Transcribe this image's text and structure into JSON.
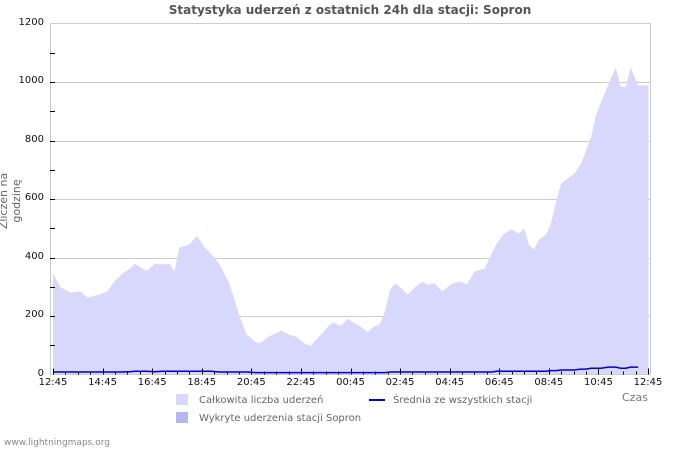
{
  "title": "Statystyka uderzeń z ostatnich 24h dla stacji: Sopron",
  "footer": "www.lightningmaps.org",
  "chart_data": {
    "type": "area",
    "title": "Statystyka uderzeń z ostatnich 24h dla stacji: Sopron",
    "xlabel": "Czas",
    "ylabel": "Zliczeń na godzinę",
    "ylim": [
      0,
      1200
    ],
    "yticks": [
      0,
      200,
      400,
      600,
      800,
      1000,
      1200
    ],
    "xticks": [
      "12:45",
      "14:45",
      "16:45",
      "18:45",
      "20:45",
      "22:45",
      "00:45",
      "02:45",
      "04:45",
      "06:45",
      "08:45",
      "10:45",
      "12:45"
    ],
    "grid": true,
    "legend_position": "bottom",
    "x_hours": [
      0,
      0.3,
      0.7,
      1.1,
      1.4,
      1.9,
      2.2,
      2.5,
      2.8,
      3.1,
      3.3,
      3.6,
      3.8,
      4.1,
      4.4,
      4.7,
      4.9,
      5.1,
      5.5,
      5.8,
      6.1,
      6.4,
      6.7,
      7.1,
      7.5,
      7.8,
      8.2,
      8.4,
      8.7,
      8.9,
      9.2,
      9.5,
      9.8,
      10.2,
      10.4,
      10.7,
      11.1,
      11.3,
      11.6,
      11.9,
      12.1,
      12.4,
      12.7,
      12.9,
      13.2,
      13.4,
      13.6,
      13.8,
      14.0,
      14.3,
      14.6,
      14.9,
      15.1,
      15.4,
      15.7,
      16.1,
      16.4,
      16.7,
      17.0,
      17.4,
      17.7,
      17.9,
      18.2,
      18.5,
      18.8,
      19.0,
      19.2,
      19.4,
      19.6,
      19.9,
      20.1,
      20.3,
      20.5,
      20.8,
      21.0,
      21.3,
      21.5,
      21.7,
      21.9,
      22.1,
      22.4,
      22.7,
      22.9,
      23.1,
      23.3,
      23.6
    ],
    "series": [
      {
        "name": "Całkowita liczba uderzeń",
        "color": "#d8d8fc",
        "values": [
          345,
          298,
          280,
          284,
          263,
          274,
          284,
          321,
          345,
          362,
          379,
          362,
          355,
          379,
          376,
          379,
          352,
          434,
          444,
          475,
          437,
          410,
          379,
          315,
          208,
          137,
          109,
          109,
          130,
          137,
          150,
          137,
          130,
          103,
          99,
          126,
          164,
          178,
          167,
          191,
          178,
          164,
          144,
          161,
          174,
          219,
          291,
          311,
          298,
          274,
          298,
          318,
          308,
          311,
          284,
          311,
          318,
          308,
          352,
          362,
          414,
          448,
          482,
          496,
          482,
          500,
          444,
          427,
          461,
          479,
          520,
          595,
          653,
          674,
          684,
          721,
          766,
          810,
          885,
          930,
          991,
          1050,
          985,
          982,
          1050,
          988
        ]
      },
      {
        "name": "Wykryte uderzenia stacji Sopron",
        "color": "#b4b4f8",
        "values": [
          0,
          0,
          0,
          0,
          0,
          0,
          0,
          0,
          0,
          0,
          0,
          0,
          0,
          0,
          0,
          0,
          0,
          0,
          0,
          0,
          0,
          0,
          0,
          0,
          0,
          0,
          0,
          0,
          0,
          0,
          0,
          0,
          0,
          0,
          0,
          0,
          0,
          0,
          0,
          0,
          0,
          0,
          0,
          0,
          0,
          0,
          0,
          0,
          0,
          0,
          0,
          0,
          0,
          0,
          0,
          0,
          0,
          0,
          0,
          0,
          0,
          0,
          0,
          0,
          0,
          0,
          0,
          0,
          0,
          0,
          0,
          0,
          0,
          0,
          0,
          0,
          0,
          0,
          0,
          0,
          0,
          0,
          0,
          0,
          0,
          0
        ]
      },
      {
        "name": "Średnia ze wszystkich stacji",
        "color": "#0000cc",
        "values": [
          5,
          5,
          5,
          5,
          5,
          5,
          5,
          5,
          5,
          6,
          8,
          8,
          8,
          6,
          8,
          8,
          8,
          8,
          8,
          8,
          8,
          8,
          5,
          5,
          5,
          5,
          3,
          3,
          3,
          3,
          3,
          3,
          3,
          3,
          3,
          3,
          3,
          3,
          3,
          3,
          3,
          3,
          3,
          3,
          3,
          3,
          5,
          5,
          5,
          5,
          5,
          5,
          5,
          5,
          5,
          5,
          5,
          5,
          5,
          5,
          5,
          8,
          8,
          8,
          8,
          8,
          8,
          8,
          8,
          8,
          10,
          10,
          12,
          12,
          12,
          15,
          15,
          18,
          18,
          18,
          22,
          22,
          18,
          18,
          22,
          22
        ]
      }
    ]
  },
  "legend": {
    "total_label": "Całkowita liczba uderzeń",
    "detected_label": "Wykryte uderzenia stacji Sopron",
    "average_label": "Średnia ze wszystkich stacji"
  },
  "axes": {
    "ylabel": "Zliczeń na godzinę",
    "xlabel": "Czas"
  }
}
